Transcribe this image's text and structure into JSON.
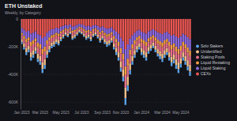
{
  "chart_data": {
    "type": "bar",
    "title": "ETH Unstaked",
    "subtitle": "Weekly, by Category",
    "stacked": true,
    "grid": true,
    "legend": "right",
    "categories": [
      "Jan 2023",
      null,
      null,
      null,
      null,
      null,
      null,
      null,
      "Mar 2023",
      null,
      null,
      null,
      null,
      null,
      null,
      null,
      null,
      "May 2023",
      null,
      null,
      null,
      null,
      null,
      null,
      null,
      null,
      "Jul 2023",
      null,
      null,
      null,
      null,
      null,
      null,
      null,
      null,
      "Sep 2023",
      null,
      null,
      null,
      null,
      null,
      null,
      null,
      "Nov 2023",
      null,
      null,
      null,
      null,
      null,
      null,
      null,
      null,
      "Jan 2024",
      null,
      null,
      null,
      null,
      null,
      null,
      null,
      null,
      "Mar 2024",
      null,
      null,
      null,
      null,
      null,
      null,
      null,
      "May 2024",
      null,
      null,
      null,
      null
    ],
    "ylim": [
      -650000,
      0
    ],
    "yticks": [
      0,
      {
        "value": -200000,
        "label": "-200K"
      },
      {
        "value": -400000,
        "label": "-400K"
      },
      {
        "value": -600000,
        "label": "-600K"
      }
    ],
    "series": [
      {
        "name": "Solo Stakers",
        "color": "#5aa0e6",
        "values": [
          -14000,
          -18000,
          -21000,
          -19000,
          -24000,
          -22000,
          -19000,
          -24000,
          -25000,
          -30000,
          -29000,
          -22000,
          -19000,
          -16000,
          -16000,
          -14000,
          -14000,
          -13000,
          -11000,
          -10000,
          -10000,
          -8000,
          -11000,
          -11000,
          -10000,
          -8000,
          -8000,
          -9000,
          -11000,
          -11000,
          -13000,
          -9000,
          -10000,
          -11000,
          -13000,
          -11000,
          -14000,
          -16000,
          -14000,
          -13000,
          -18000,
          -21000,
          -24000,
          -30000,
          -35000,
          -50000,
          -42000,
          -32000,
          -25000,
          -22000,
          -19000,
          -18000,
          -21000,
          -22000,
          -24000,
          -19000,
          -17000,
          -16000,
          -19000,
          -21000,
          -22000,
          -24000,
          -22000,
          -21000,
          -24000,
          -27000,
          -26000,
          -29000,
          -30000,
          -27000,
          -24000,
          -25000,
          -29000,
          -32000
        ]
      },
      {
        "name": "Unidentified",
        "color": "#f5c08a",
        "values": [
          -22000,
          -26000,
          -31000,
          -29000,
          -36000,
          -34000,
          -30000,
          -37000,
          -40000,
          -47000,
          -43000,
          -34000,
          -29000,
          -25000,
          -24000,
          -22000,
          -23000,
          -19000,
          -17000,
          -14000,
          -16000,
          -13000,
          -18000,
          -17000,
          -14000,
          -12000,
          -13000,
          -16000,
          -18000,
          -17000,
          -19000,
          -16000,
          -14000,
          -17000,
          -20000,
          -18000,
          -22000,
          -24000,
          -23000,
          -20000,
          -26000,
          -31000,
          -36000,
          -46000,
          -54000,
          -74000,
          -62000,
          -48000,
          -40000,
          -34000,
          -29000,
          -26000,
          -31000,
          -34000,
          -36000,
          -30000,
          -28000,
          -25000,
          -29000,
          -32000,
          -35000,
          -37000,
          -34000,
          -31000,
          -36000,
          -41000,
          -38000,
          -43000,
          -47000,
          -42000,
          -36000,
          -40000,
          -44000,
          -49000
        ]
      },
      {
        "name": "Staking Pools",
        "color": "#e8708c",
        "values": [
          -27000,
          -33000,
          -39000,
          -36000,
          -45000,
          -42000,
          -38000,
          -47000,
          -50000,
          -59000,
          -54000,
          -42000,
          -36000,
          -32000,
          -30000,
          -27000,
          -29000,
          -24000,
          -21000,
          -18000,
          -20000,
          -17000,
          -23000,
          -21000,
          -18000,
          -15000,
          -17000,
          -20000,
          -23000,
          -21000,
          -24000,
          -20000,
          -18000,
          -21000,
          -26000,
          -23000,
          -27000,
          -30000,
          -29000,
          -26000,
          -33000,
          -39000,
          -45000,
          -57000,
          -68000,
          -93000,
          -78000,
          -60000,
          -50000,
          -42000,
          -36000,
          -33000,
          -39000,
          -42000,
          -45000,
          -38000,
          -35000,
          -32000,
          -36000,
          -41000,
          -44000,
          -47000,
          -42000,
          -39000,
          -45000,
          -51000,
          -48000,
          -54000,
          -59000,
          -53000,
          -45000,
          -50000,
          -56000,
          -62000
        ]
      },
      {
        "name": "Liquid Restaking",
        "color": "#f59e42",
        "values": [
          -18000,
          -22000,
          -26000,
          -24000,
          -30000,
          -28000,
          -25000,
          -31000,
          -33000,
          -39000,
          -36000,
          -28000,
          -24000,
          -21000,
          -20000,
          -18000,
          -19000,
          -16000,
          -14000,
          -12000,
          -13000,
          -11000,
          -15000,
          -14000,
          -12000,
          -10000,
          -11000,
          -13000,
          -15000,
          -14000,
          -16000,
          -13000,
          -12000,
          -14000,
          -17000,
          -15000,
          -18000,
          -20000,
          -19000,
          -17000,
          -22000,
          -26000,
          -30000,
          -38000,
          -45000,
          -62000,
          -52000,
          -40000,
          -33000,
          -28000,
          -24000,
          -22000,
          -26000,
          -28000,
          -30000,
          -25000,
          -23000,
          -21000,
          -24000,
          -27000,
          -29000,
          -31000,
          -28000,
          -26000,
          -30000,
          -34000,
          -32000,
          -36000,
          -39000,
          -35000,
          -30000,
          -33000,
          -37000,
          -41000
        ]
      },
      {
        "name": "Liquid Staking",
        "color": "#8e6ae0",
        "values": [
          -36000,
          -44000,
          -52000,
          -48000,
          -60000,
          -56000,
          -50000,
          -62000,
          -66000,
          -78000,
          -72000,
          -56000,
          -48000,
          -42000,
          -40000,
          -36000,
          -38000,
          -32000,
          -28000,
          -24000,
          -26000,
          -22000,
          -30000,
          -28000,
          -24000,
          -20000,
          -22000,
          -26000,
          -30000,
          -28000,
          -32000,
          -26000,
          -24000,
          -28000,
          -34000,
          -30000,
          -36000,
          -40000,
          -38000,
          -34000,
          -44000,
          -52000,
          -60000,
          -76000,
          -90000,
          -124000,
          -104000,
          -80000,
          -66000,
          -56000,
          -48000,
          -44000,
          -52000,
          -56000,
          -60000,
          -50000,
          -46000,
          -42000,
          -48000,
          -54000,
          -58000,
          -62000,
          -56000,
          -52000,
          -60000,
          -68000,
          -64000,
          -72000,
          -78000,
          -70000,
          -60000,
          -66000,
          -74000,
          -82000
        ]
      },
      {
        "name": "CEXs",
        "color": "#e6554f",
        "values": [
          -63000,
          -77000,
          -91000,
          -84000,
          -105000,
          -98000,
          -88000,
          -109000,
          -116000,
          -137000,
          -126000,
          -98000,
          -84000,
          -74000,
          -70000,
          -63000,
          -67000,
          -56000,
          -49000,
          -42000,
          -46000,
          -39000,
          -53000,
          -49000,
          -42000,
          -35000,
          -39000,
          -46000,
          -53000,
          -49000,
          -56000,
          -46000,
          -42000,
          -49000,
          -60000,
          -53000,
          -63000,
          -70000,
          -67000,
          -60000,
          -77000,
          -91000,
          -105000,
          -133000,
          -158000,
          -217000,
          -182000,
          -140000,
          -116000,
          -98000,
          -84000,
          -77000,
          -91000,
          -98000,
          -105000,
          -88000,
          -81000,
          -74000,
          -84000,
          -95000,
          -102000,
          -109000,
          -98000,
          -91000,
          -105000,
          -119000,
          -112000,
          -126000,
          -137000,
          -123000,
          -105000,
          -116000,
          -130000,
          -144000
        ]
      }
    ]
  }
}
